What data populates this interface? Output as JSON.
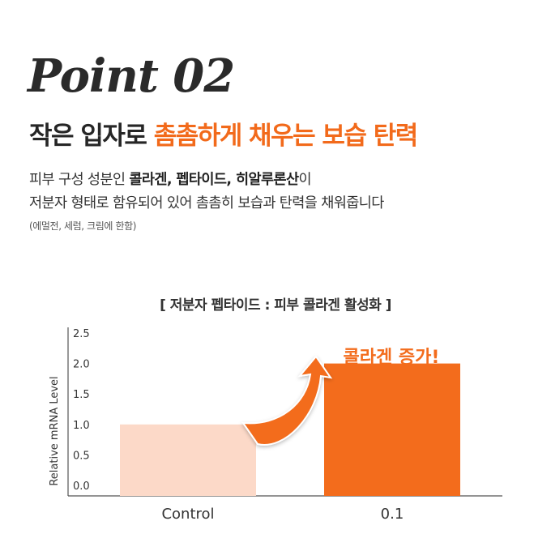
{
  "point_label": "Point 02",
  "headline": {
    "dark": "작은 입자로 ",
    "accent": "촘촘하게 채우는 보습 탄력"
  },
  "description": {
    "line1_prefix": "피부 구성 성분인 ",
    "line1_bold": "콜라겐, 펩타이드, 히알루론산",
    "line1_suffix": "이",
    "line2": "저분자 형태로 함유되어 있어 촘촘히 보습과 탄력을 채워줍니다"
  },
  "note": "(에멀전, 세럼, 크림에 한함)",
  "chart_data": {
    "type": "bar",
    "title": "[ 저분자 펩타이드 : 피부 콜라겐 활성화 ]",
    "categories": [
      "Control",
      "0.1"
    ],
    "values": [
      1.0,
      2.0
    ],
    "ylabel": "Relative mRNA Level",
    "xlabel": "",
    "ylim": [
      0,
      2.5
    ],
    "yticks": [
      "0.0",
      "0.5",
      "1.0",
      "1.5",
      "2.0",
      "2.5"
    ],
    "grid": false,
    "colors": [
      "#fcd9c8",
      "#f36c1c"
    ],
    "arrow_color": "#f36c1c",
    "annotation": "콜라겐 증가!"
  }
}
